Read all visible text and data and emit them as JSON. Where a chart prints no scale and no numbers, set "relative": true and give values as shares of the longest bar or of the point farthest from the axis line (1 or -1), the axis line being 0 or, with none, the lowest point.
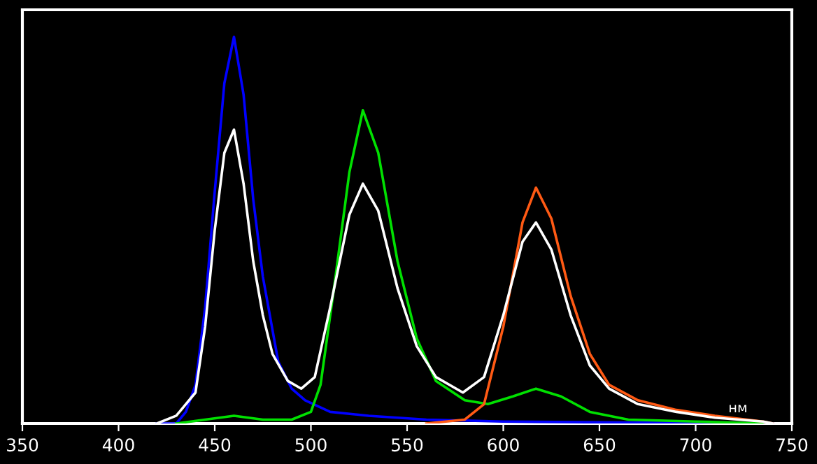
{
  "chart_data": {
    "type": "line",
    "relative": true,
    "xlabel": "нм",
    "xlim": [
      350,
      750
    ],
    "xticks": [
      350,
      400,
      450,
      500,
      550,
      600,
      650,
      700,
      750
    ],
    "grid": false,
    "marker": "none",
    "line_style": "solid",
    "tick_labels": "x",
    "series": [
      {
        "color": "#0000ff",
        "x": [
          420,
          430,
          435,
          440,
          445,
          450,
          455,
          460,
          465,
          470,
          475,
          483,
          490,
          497,
          510,
          530,
          560,
          600,
          650,
          700,
          740
        ],
        "values": [
          0,
          0,
          0.03,
          0.1,
          0.3,
          0.6,
          0.88,
          1,
          0.85,
          0.58,
          0.38,
          0.16,
          0.09,
          0.06,
          0.03,
          0.02,
          0.01,
          0.005,
          0.003,
          0.001,
          0
        ]
      },
      {
        "color": "#00e000",
        "x": [
          430,
          445,
          460,
          475,
          490,
          500,
          505,
          512,
          520,
          527,
          535,
          545,
          555,
          565,
          580,
          592,
          605,
          617,
          630,
          645,
          665,
          700,
          735
        ],
        "values": [
          0,
          0.01,
          0.02,
          0.01,
          0.01,
          0.03,
          0.1,
          0.35,
          0.65,
          0.81,
          0.7,
          0.42,
          0.22,
          0.11,
          0.06,
          0.05,
          0.07,
          0.09,
          0.07,
          0.03,
          0.01,
          0.005,
          0
        ]
      },
      {
        "color": "#ff5a14",
        "x": [
          560,
          580,
          590,
          600,
          610,
          617,
          625,
          635,
          645,
          655,
          670,
          690,
          710,
          735,
          740
        ],
        "values": [
          0,
          0.01,
          0.05,
          0.25,
          0.52,
          0.61,
          0.53,
          0.33,
          0.18,
          0.1,
          0.06,
          0.035,
          0.02,
          0.005,
          0
        ]
      },
      {
        "color": "#ffffff",
        "x": [
          420,
          430,
          440,
          445,
          450,
          455,
          460,
          465,
          470,
          475,
          480,
          488,
          495,
          502,
          510,
          520,
          527,
          535,
          545,
          555,
          565,
          579,
          590,
          600,
          610,
          617,
          625,
          635,
          645,
          655,
          670,
          690,
          710,
          735,
          740
        ],
        "values": [
          0,
          0.02,
          0.08,
          0.25,
          0.5,
          0.7,
          0.76,
          0.62,
          0.42,
          0.28,
          0.18,
          0.11,
          0.09,
          0.12,
          0.3,
          0.54,
          0.62,
          0.55,
          0.35,
          0.2,
          0.12,
          0.08,
          0.12,
          0.28,
          0.47,
          0.52,
          0.45,
          0.28,
          0.15,
          0.09,
          0.05,
          0.03,
          0.015,
          0.005,
          0
        ]
      }
    ]
  }
}
